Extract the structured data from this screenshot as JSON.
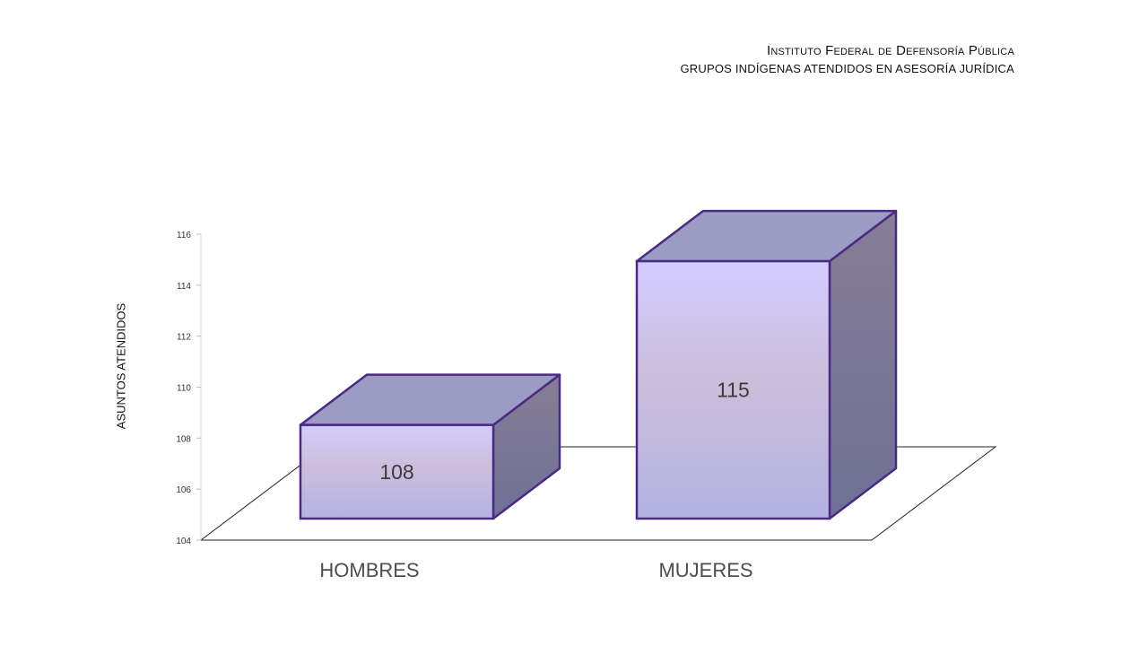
{
  "header": {
    "line1": "Instituto Federal de Defensoría Pública",
    "line2": "GRUPOS INDÍGENAS ATENDIDOS EN ASESORÍA JURÍDICA"
  },
  "chart_data": {
    "type": "bar",
    "categories": [
      "HOMBRES",
      "MUJERES"
    ],
    "values": [
      108,
      115
    ],
    "ylabel": "ASUNTOS ATENDIDOS",
    "xlabel": "",
    "ylim": [
      104,
      116
    ],
    "yticks": [
      104,
      106,
      108,
      110,
      112,
      114,
      116
    ],
    "grid": false,
    "style": "3d-column",
    "colors": {
      "front_top": "#d2ccff",
      "front_mid": "#ccbedb",
      "front_bottom": "#b3b3e2",
      "top_face": "#9c9bc4",
      "side_top": "#877e95",
      "side_bottom": "#6e7095",
      "outline": "#4a2a82"
    }
  }
}
